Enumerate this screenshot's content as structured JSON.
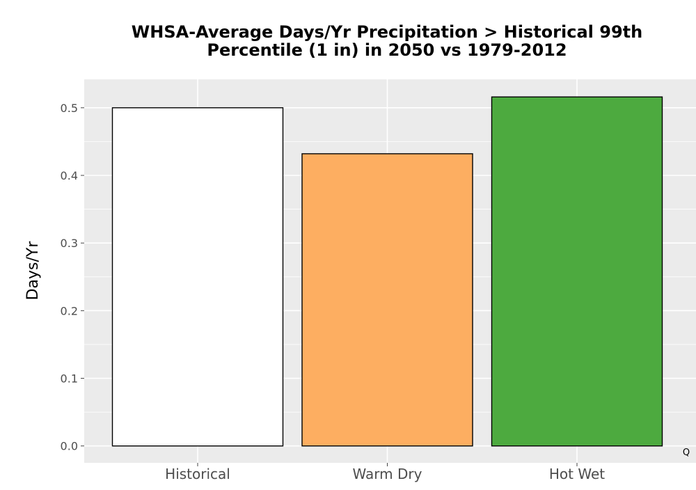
{
  "chart_data": {
    "type": "bar",
    "title_line1": "WHSA-Average Days/Yr Precipitation > Historical 99th",
    "title_line2": "Percentile (1 in) in 2050 vs 1979-2012",
    "xlabel": "",
    "ylabel": "Days/Yr",
    "categories": [
      "Historical",
      "Warm Dry",
      "Hot Wet"
    ],
    "values": [
      0.5,
      0.432,
      0.516
    ],
    "bar_colors": [
      "#ffffff",
      "#fdae61",
      "#4daa3f"
    ],
    "ylim": [
      -0.025,
      0.542
    ],
    "yticks": [
      0.0,
      0.1,
      0.2,
      0.3,
      0.4,
      0.5
    ],
    "ytick_labels": [
      "0.0",
      "0.1",
      "0.2",
      "0.3",
      "0.4",
      "0.5"
    ],
    "grid": true,
    "panel_background": "#ebebeb",
    "grid_color": "#ffffff",
    "bar_outline": "#000000",
    "corner_mark": "Q"
  }
}
